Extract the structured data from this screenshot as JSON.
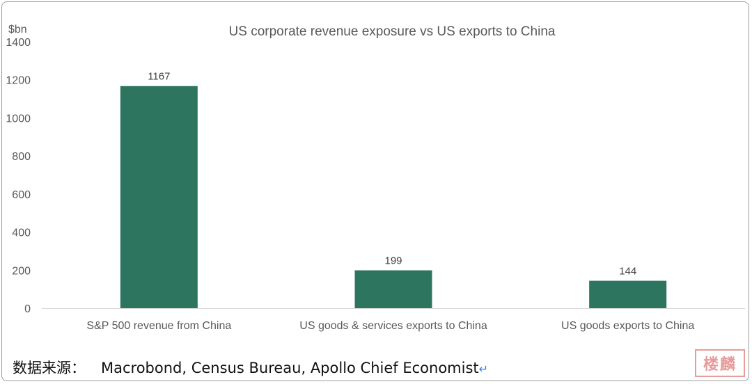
{
  "chart_data": {
    "type": "bar",
    "title": "US corporate revenue exposure vs US exports to China",
    "ylabel": "$bn",
    "xlabel": "",
    "categories": [
      "S&P 500 revenue from China",
      "US goods & services exports to China",
      "US goods exports to China"
    ],
    "values": [
      1167,
      199,
      144
    ],
    "ylim": [
      0,
      1400
    ],
    "yticks": [
      0,
      200,
      400,
      600,
      800,
      1000,
      1200,
      1400
    ],
    "data_labels": [
      "1167",
      "199",
      "144"
    ],
    "grid": false,
    "legend": "none",
    "bar_color": "#2e7560",
    "axis_color": "#d9d9d9"
  },
  "source": {
    "label": "数据来源：",
    "text": "Macrobond, Census Bureau, Apollo Chief Economist",
    "return_mark": "↵"
  },
  "stamp": {
    "text": "楼麟"
  }
}
